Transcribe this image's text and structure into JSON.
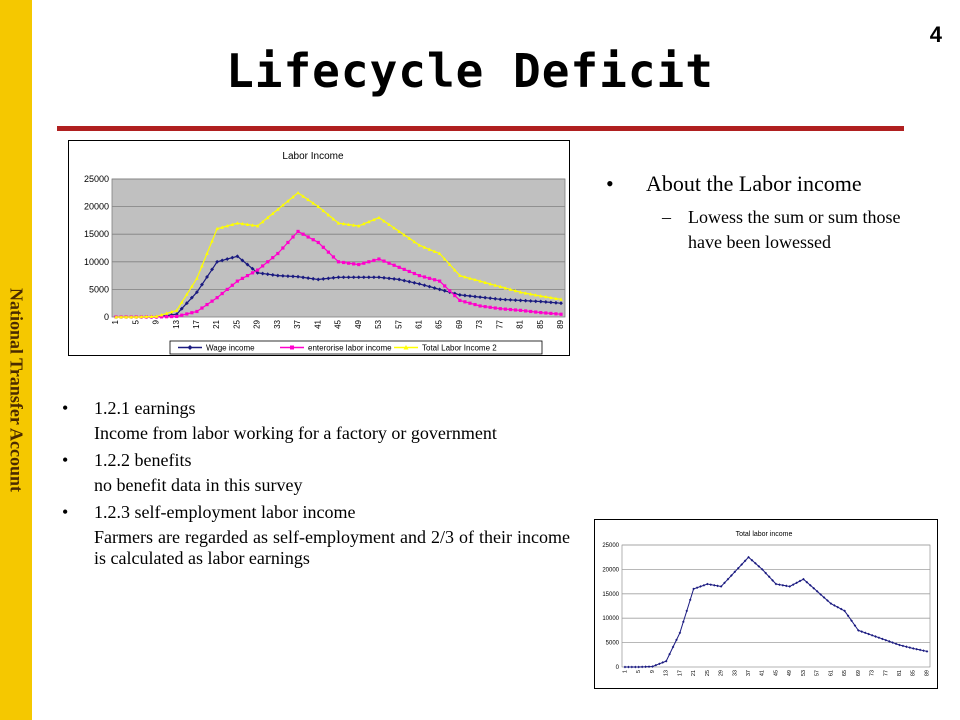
{
  "sidebar": {
    "label": "National Transfer Account"
  },
  "slide": {
    "number": "4",
    "title": "Lifecycle Deficit"
  },
  "colors": {
    "sidebar": "#f5c800",
    "rule": "#b02020",
    "wage": "#1a1a80",
    "enterprise": "#ff00cc",
    "total": "#ffff00",
    "small_line": "#1a1a80"
  },
  "bullets": [
    {
      "head": "1.2.1 earnings",
      "sub": "Income from labor working for a factory or government"
    },
    {
      "head": "1.2.2 benefits",
      "sub": "no benefit data in this survey"
    },
    {
      "head": "1.2.3 self-employment labor income",
      "sub": "Farmers are regarded as self-employment and 2/3 of their income is calculated as labor earnings"
    }
  ],
  "about": {
    "head": "About the Labor income",
    "sub": "Lowess the sum or sum those have been lowessed"
  },
  "chart_data": [
    {
      "type": "line",
      "title": "Labor Income",
      "xlabel": "",
      "ylabel": "",
      "ylim": [
        0,
        25000
      ],
      "yticks": [
        0,
        5000,
        10000,
        15000,
        20000,
        25000
      ],
      "xticks": [
        "1",
        "5",
        "9",
        "13",
        "17",
        "21",
        "25",
        "29",
        "33",
        "37",
        "41",
        "45",
        "49",
        "53",
        "57",
        "61",
        "65",
        "69",
        "73",
        "77",
        "81",
        "85",
        "89"
      ],
      "grid": true,
      "legend": "bottom",
      "x": [
        1,
        5,
        9,
        13,
        17,
        21,
        25,
        29,
        33,
        37,
        41,
        45,
        49,
        53,
        57,
        61,
        65,
        69,
        73,
        77,
        81,
        85,
        89
      ],
      "series": [
        {
          "name": "Wage income",
          "marker": "diamond",
          "values": [
            0,
            0,
            0,
            500,
            4500,
            10000,
            11000,
            8000,
            7500,
            7300,
            6800,
            7200,
            7200,
            7200,
            6800,
            6000,
            5000,
            4000,
            3600,
            3200,
            3000,
            2800,
            2500
          ]
        },
        {
          "name": "enterorise labor income",
          "marker": "square",
          "values": [
            0,
            0,
            0,
            100,
            1000,
            3500,
            6500,
            8500,
            11500,
            15500,
            13500,
            10000,
            9500,
            10500,
            9000,
            7500,
            6500,
            3000,
            2000,
            1500,
            1200,
            800,
            500
          ]
        },
        {
          "name": "Total Labor Income 2",
          "marker": "triangle",
          "values": [
            0,
            0,
            100,
            1200,
            7000,
            16000,
            17000,
            16500,
            19500,
            22500,
            20000,
            17000,
            16500,
            18000,
            15500,
            13000,
            11500,
            7500,
            6500,
            5500,
            4500,
            3800,
            3200
          ]
        }
      ]
    },
    {
      "type": "line",
      "title": "Total labor income",
      "xlabel": "",
      "ylabel": "",
      "ylim": [
        0,
        25000
      ],
      "yticks": [
        0,
        5000,
        10000,
        15000,
        20000,
        25000
      ],
      "xticks": [
        "1",
        "5",
        "9",
        "13",
        "17",
        "21",
        "25",
        "29",
        "33",
        "37",
        "41",
        "45",
        "49",
        "53",
        "57",
        "61",
        "65",
        "69",
        "73",
        "77",
        "81",
        "85",
        "89"
      ],
      "grid": true,
      "legend": "none",
      "x": [
        1,
        5,
        9,
        13,
        17,
        21,
        25,
        29,
        33,
        37,
        41,
        45,
        49,
        53,
        57,
        61,
        65,
        69,
        73,
        77,
        81,
        85,
        89
      ],
      "series": [
        {
          "name": "",
          "values": [
            0,
            0,
            100,
            1200,
            7000,
            16000,
            17000,
            16500,
            19500,
            22500,
            20000,
            17000,
            16500,
            18000,
            15500,
            13000,
            11500,
            7500,
            6500,
            5500,
            4500,
            3800,
            3200
          ]
        }
      ]
    }
  ]
}
